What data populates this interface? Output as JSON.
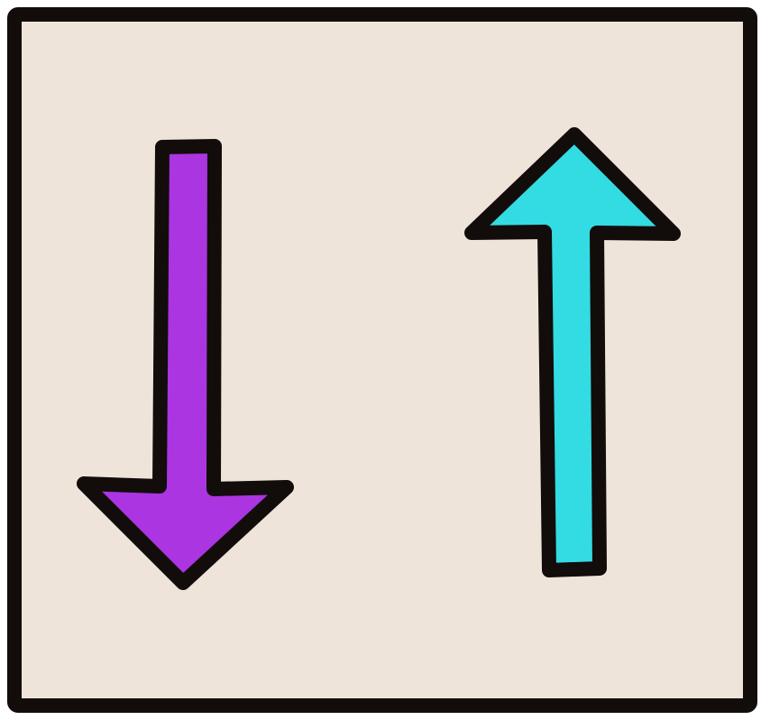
{
  "illustration": {
    "panel": {
      "fill_color": "#EFE4DA",
      "border_color": "#120C0B"
    },
    "arrows": [
      {
        "direction": "down",
        "icon": "arrow-down-icon",
        "fill_color": "#AA35E1"
      },
      {
        "direction": "up",
        "icon": "arrow-up-icon",
        "fill_color": "#33DBE2"
      }
    ]
  }
}
